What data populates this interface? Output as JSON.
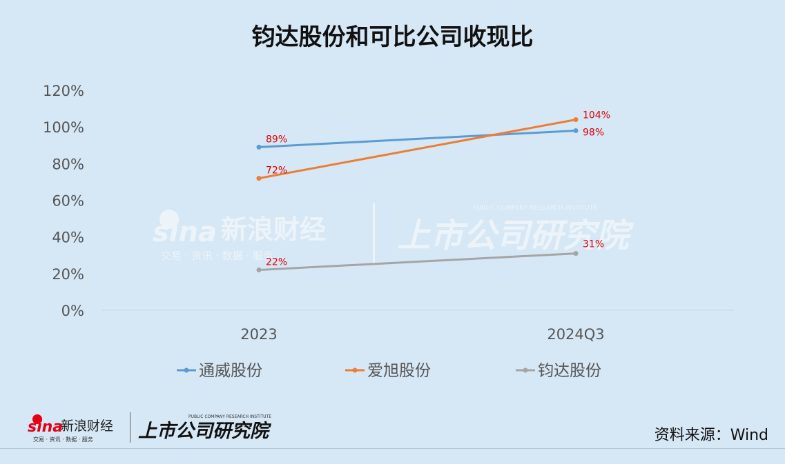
{
  "header": {
    "title": "钧达股份和可比公司收现比"
  },
  "source_note": "资料来源：Wind",
  "branding": {
    "sina_text": "sina",
    "sina_cn": "新浪财经",
    "sina_sub": "交易 · 资讯 · 数据 · 服务",
    "institute_cn": "上市公司研究院",
    "institute_en": "PUBLIC COMPANY RESEARCH INSTITUTE"
  },
  "chart_data": {
    "type": "line",
    "title": "钧达股份和可比公司收现比",
    "categories": [
      "2023",
      "2024Q3"
    ],
    "yticks": [
      "0%",
      "20%",
      "40%",
      "60%",
      "80%",
      "100%",
      "120%"
    ],
    "ylim": [
      0,
      120
    ],
    "legend_position": "bottom",
    "series": [
      {
        "name": "通威股份",
        "values": [
          89,
          98
        ],
        "labels": [
          "89%",
          "98%"
        ],
        "color": "#5b9bd5"
      },
      {
        "name": "爱旭股份",
        "values": [
          72,
          104
        ],
        "labels": [
          "72%",
          "104%"
        ],
        "color": "#ed7d31"
      },
      {
        "name": "钧达股份",
        "values": [
          22,
          31
        ],
        "labels": [
          "22%",
          "31%"
        ],
        "color": "#a5a5a5"
      }
    ]
  }
}
